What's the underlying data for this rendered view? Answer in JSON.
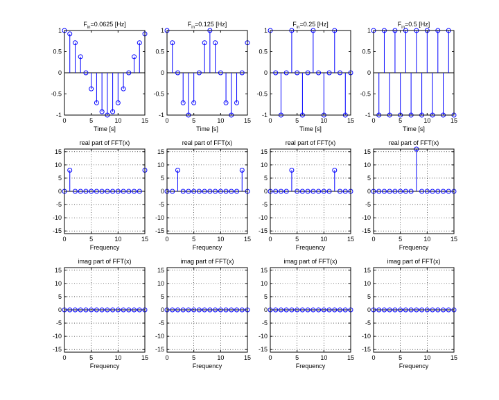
{
  "figure": {
    "rows": 3,
    "cols": 4
  },
  "colors": {
    "stem": "#0000ff",
    "axes": "#000000",
    "grid": "#000000",
    "background": "#ffffff"
  },
  "chart_data": [
    {
      "type": "stem",
      "row": 0,
      "col": 0,
      "title": "F_in=0.0625 [Hz]",
      "title_main": "F",
      "title_sub": "in",
      "title_rest": "=0.0625 [Hz]",
      "xlabel": "Time [s]",
      "ylabel": "",
      "xlim": [
        0,
        15
      ],
      "ylim": [
        -1,
        1
      ],
      "xticks": [
        0,
        5,
        10,
        15
      ],
      "yticks": [
        -1,
        -0.5,
        0,
        0.5,
        1
      ],
      "grid": false,
      "x": [
        0,
        1,
        2,
        3,
        4,
        5,
        6,
        7,
        8,
        9,
        10,
        11,
        12,
        13,
        14,
        15
      ],
      "y": [
        1,
        0.92,
        0.71,
        0.38,
        0,
        -0.38,
        -0.71,
        -0.92,
        -1,
        -0.92,
        -0.71,
        -0.38,
        0,
        0.38,
        0.71,
        0.92
      ]
    },
    {
      "type": "stem",
      "row": 0,
      "col": 1,
      "title": "F_in=0.125 [Hz]",
      "title_main": "F",
      "title_sub": "in",
      "title_rest": "=0.125 [Hz]",
      "xlabel": "Time [s]",
      "ylabel": "",
      "xlim": [
        0,
        15
      ],
      "ylim": [
        -1,
        1
      ],
      "xticks": [
        0,
        5,
        10,
        15
      ],
      "yticks": [
        -1,
        -0.5,
        0,
        0.5,
        1
      ],
      "grid": false,
      "x": [
        0,
        1,
        2,
        3,
        4,
        5,
        6,
        7,
        8,
        9,
        10,
        11,
        12,
        13,
        14,
        15
      ],
      "y": [
        1,
        0.71,
        0,
        -0.71,
        -1,
        -0.71,
        0,
        0.71,
        1,
        0.71,
        0,
        -0.71,
        -1,
        -0.71,
        0,
        0.71
      ]
    },
    {
      "type": "stem",
      "row": 0,
      "col": 2,
      "title": "F_in=0.25 [Hz]",
      "title_main": "F",
      "title_sub": "in",
      "title_rest": "=0.25 [Hz]",
      "xlabel": "Time [s]",
      "ylabel": "",
      "xlim": [
        0,
        15
      ],
      "ylim": [
        -1,
        1
      ],
      "xticks": [
        0,
        5,
        10,
        15
      ],
      "yticks": [
        -1,
        -0.5,
        0,
        0.5,
        1
      ],
      "grid": false,
      "x": [
        0,
        1,
        2,
        3,
        4,
        5,
        6,
        7,
        8,
        9,
        10,
        11,
        12,
        13,
        14,
        15
      ],
      "y": [
        1,
        0,
        -1,
        0,
        1,
        0,
        -1,
        0,
        1,
        0,
        -1,
        0,
        1,
        0,
        -1,
        0
      ]
    },
    {
      "type": "stem",
      "row": 0,
      "col": 3,
      "title": "F_in=0.5 [Hz]",
      "title_main": "F",
      "title_sub": "in",
      "title_rest": "=0.5 [Hz]",
      "xlabel": "Time [s]",
      "ylabel": "",
      "xlim": [
        0,
        15
      ],
      "ylim": [
        -1,
        1
      ],
      "xticks": [
        0,
        5,
        10,
        15
      ],
      "yticks": [
        -1,
        -0.5,
        0,
        0.5,
        1
      ],
      "grid": false,
      "x": [
        0,
        1,
        2,
        3,
        4,
        5,
        6,
        7,
        8,
        9,
        10,
        11,
        12,
        13,
        14,
        15
      ],
      "y": [
        1,
        -1,
        1,
        -1,
        1,
        -1,
        1,
        -1,
        1,
        -1,
        1,
        -1,
        1,
        -1,
        1,
        -1
      ]
    },
    {
      "type": "stem",
      "row": 1,
      "col": 0,
      "title": "real part of FFT(x)",
      "xlabel": "Frequency",
      "ylabel": "",
      "xlim": [
        0,
        15
      ],
      "ylim": [
        -16,
        16
      ],
      "xticks": [
        0,
        5,
        10,
        15
      ],
      "yticks": [
        -15,
        -10,
        -5,
        0,
        5,
        10,
        15
      ],
      "grid": true,
      "x": [
        0,
        1,
        2,
        3,
        4,
        5,
        6,
        7,
        8,
        9,
        10,
        11,
        12,
        13,
        14,
        15
      ],
      "y": [
        0,
        8,
        0,
        0,
        0,
        0,
        0,
        0,
        0,
        0,
        0,
        0,
        0,
        0,
        0,
        8
      ]
    },
    {
      "type": "stem",
      "row": 1,
      "col": 1,
      "title": "real part of FFT(x)",
      "xlabel": "Frequency",
      "ylabel": "",
      "xlim": [
        0,
        15
      ],
      "ylim": [
        -16,
        16
      ],
      "xticks": [
        0,
        5,
        10,
        15
      ],
      "yticks": [
        -15,
        -10,
        -5,
        0,
        5,
        10,
        15
      ],
      "grid": true,
      "x": [
        0,
        1,
        2,
        3,
        4,
        5,
        6,
        7,
        8,
        9,
        10,
        11,
        12,
        13,
        14,
        15
      ],
      "y": [
        0,
        0,
        8,
        0,
        0,
        0,
        0,
        0,
        0,
        0,
        0,
        0,
        0,
        0,
        8,
        0
      ]
    },
    {
      "type": "stem",
      "row": 1,
      "col": 2,
      "title": "real part of FFT(x)",
      "xlabel": "Frequency",
      "ylabel": "",
      "xlim": [
        0,
        15
      ],
      "ylim": [
        -16,
        16
      ],
      "xticks": [
        0,
        5,
        10,
        15
      ],
      "yticks": [
        -15,
        -10,
        -5,
        0,
        5,
        10,
        15
      ],
      "grid": true,
      "x": [
        0,
        1,
        2,
        3,
        4,
        5,
        6,
        7,
        8,
        9,
        10,
        11,
        12,
        13,
        14,
        15
      ],
      "y": [
        0,
        0,
        0,
        0,
        8,
        0,
        0,
        0,
        0,
        0,
        0,
        0,
        8,
        0,
        0,
        0
      ]
    },
    {
      "type": "stem",
      "row": 1,
      "col": 3,
      "title": "real part of FFT(x)",
      "xlabel": "Frequency",
      "ylabel": "",
      "xlim": [
        0,
        15
      ],
      "ylim": [
        -16,
        16
      ],
      "xticks": [
        0,
        5,
        10,
        15
      ],
      "yticks": [
        -15,
        -10,
        -5,
        0,
        5,
        10,
        15
      ],
      "grid": true,
      "x": [
        0,
        1,
        2,
        3,
        4,
        5,
        6,
        7,
        8,
        9,
        10,
        11,
        12,
        13,
        14,
        15
      ],
      "y": [
        0,
        0,
        0,
        0,
        0,
        0,
        0,
        0,
        16,
        0,
        0,
        0,
        0,
        0,
        0,
        0
      ]
    },
    {
      "type": "stem",
      "row": 2,
      "col": 0,
      "title": "imag part of FFT(x)",
      "xlabel": "Frequency",
      "ylabel": "",
      "xlim": [
        0,
        15
      ],
      "ylim": [
        -16,
        16
      ],
      "xticks": [
        0,
        5,
        10,
        15
      ],
      "yticks": [
        -15,
        -10,
        -5,
        0,
        5,
        10,
        15
      ],
      "grid": true,
      "x": [
        0,
        1,
        2,
        3,
        4,
        5,
        6,
        7,
        8,
        9,
        10,
        11,
        12,
        13,
        14,
        15
      ],
      "y": [
        0,
        0,
        0,
        0,
        0,
        0,
        0,
        0,
        0,
        0,
        0,
        0,
        0,
        0,
        0,
        0
      ]
    },
    {
      "type": "stem",
      "row": 2,
      "col": 1,
      "title": "imag part of FFT(x)",
      "xlabel": "Frequency",
      "ylabel": "",
      "xlim": [
        0,
        15
      ],
      "ylim": [
        -16,
        16
      ],
      "xticks": [
        0,
        5,
        10,
        15
      ],
      "yticks": [
        -15,
        -10,
        -5,
        0,
        5,
        10,
        15
      ],
      "grid": true,
      "x": [
        0,
        1,
        2,
        3,
        4,
        5,
        6,
        7,
        8,
        9,
        10,
        11,
        12,
        13,
        14,
        15
      ],
      "y": [
        0,
        0,
        0,
        0,
        0,
        0,
        0,
        0,
        0,
        0,
        0,
        0,
        0,
        0,
        0,
        0
      ]
    },
    {
      "type": "stem",
      "row": 2,
      "col": 2,
      "title": "imag part of FFT(x)",
      "xlabel": "Frequency",
      "ylabel": "",
      "xlim": [
        0,
        15
      ],
      "ylim": [
        -16,
        16
      ],
      "xticks": [
        0,
        5,
        10,
        15
      ],
      "yticks": [
        -15,
        -10,
        -5,
        0,
        5,
        10,
        15
      ],
      "grid": true,
      "x": [
        0,
        1,
        2,
        3,
        4,
        5,
        6,
        7,
        8,
        9,
        10,
        11,
        12,
        13,
        14,
        15
      ],
      "y": [
        0,
        0,
        0,
        0,
        0,
        0,
        0,
        0,
        0,
        0,
        0,
        0,
        0,
        0,
        0,
        0
      ]
    },
    {
      "type": "stem",
      "row": 2,
      "col": 3,
      "title": "imag part of FFT(x)",
      "xlabel": "Frequency",
      "ylabel": "",
      "xlim": [
        0,
        15
      ],
      "ylim": [
        -16,
        16
      ],
      "xticks": [
        0,
        5,
        10,
        15
      ],
      "yticks": [
        -15,
        -10,
        -5,
        0,
        5,
        10,
        15
      ],
      "grid": true,
      "x": [
        0,
        1,
        2,
        3,
        4,
        5,
        6,
        7,
        8,
        9,
        10,
        11,
        12,
        13,
        14,
        15
      ],
      "y": [
        0,
        0,
        0,
        0,
        0,
        0,
        0,
        0,
        0,
        0,
        0,
        0,
        0,
        0,
        0,
        0
      ]
    }
  ]
}
